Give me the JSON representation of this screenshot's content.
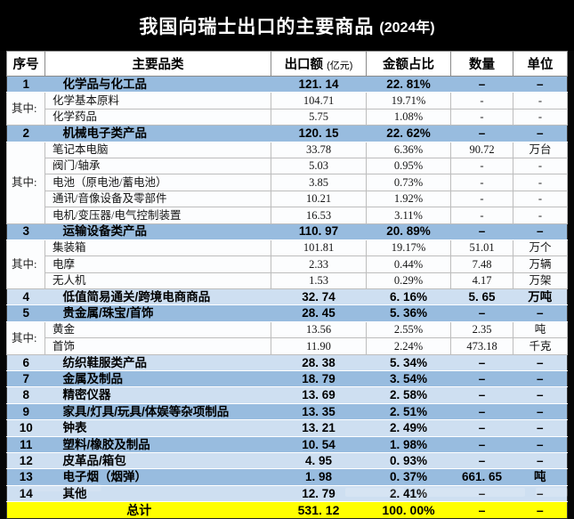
{
  "title": {
    "text": "我国向瑞士出口的主要商品",
    "suffix": "(2024年)"
  },
  "header": {
    "no": "序号",
    "category": "主要品类",
    "value": "出口额",
    "value_note": "(亿元)",
    "share": "金额占比",
    "qty": "数量",
    "unit": "单位"
  },
  "colors": {
    "title_bg": "#000000",
    "title_fg": "#FFFFFF",
    "row_medium": "#98BCDF",
    "row_light": "#CEDFF1",
    "total_bg": "#FFFF00"
  },
  "table": {
    "rows": [
      {
        "kind": "main",
        "shade": "medium",
        "no": "1",
        "category": "化学品与化工品",
        "value": "121. 14",
        "share": "22. 81%",
        "qty": "–",
        "unit": "–"
      },
      {
        "kind": "sub",
        "group": {
          "label": "其中:",
          "span": 2
        },
        "category": "化学基本原料",
        "value": "104.71",
        "share": "19.71%",
        "qty": "-",
        "unit": "-"
      },
      {
        "kind": "sub",
        "category": "化学药品",
        "value": "5.75",
        "share": "1.08%",
        "qty": "-",
        "unit": "-"
      },
      {
        "kind": "main",
        "shade": "medium",
        "no": "2",
        "category": "机械电子类产品",
        "value": "120. 15",
        "share": "22. 62%",
        "qty": "–",
        "unit": "–"
      },
      {
        "kind": "sub",
        "group": {
          "label": "其中:",
          "span": 5
        },
        "category": "笔记本电脑",
        "value": "33.78",
        "share": "6.36%",
        "qty": "90.72",
        "unit": "万台"
      },
      {
        "kind": "sub",
        "category": "阀门/轴承",
        "value": "5.03",
        "share": "0.95%",
        "qty": "-",
        "unit": "-"
      },
      {
        "kind": "sub",
        "category": "电池（原电池/蓄电池）",
        "value": "3.85",
        "share": "0.73%",
        "qty": "-",
        "unit": "-"
      },
      {
        "kind": "sub",
        "category": "通讯/音像设备及零部件",
        "value": "10.21",
        "share": "1.92%",
        "qty": "-",
        "unit": "-"
      },
      {
        "kind": "sub",
        "category": "电机/变压器/电气控制装置",
        "value": "16.53",
        "share": "3.11%",
        "qty": "-",
        "unit": "-"
      },
      {
        "kind": "main",
        "shade": "medium",
        "no": "3",
        "category": "运输设备类产品",
        "value": "110. 97",
        "share": "20. 89%",
        "qty": "–",
        "unit": "–"
      },
      {
        "kind": "sub",
        "group": {
          "label": "其中:",
          "span": 3
        },
        "category": "集装箱",
        "value": "101.81",
        "share": "19.17%",
        "qty": "51.01",
        "unit": "万个"
      },
      {
        "kind": "sub",
        "category": "电摩",
        "value": "2.33",
        "share": "0.44%",
        "qty": "7.48",
        "unit": "万辆"
      },
      {
        "kind": "sub",
        "category": "无人机",
        "value": "1.53",
        "share": "0.29%",
        "qty": "4.17",
        "unit": "万架"
      },
      {
        "kind": "main",
        "shade": "light",
        "no": "4",
        "category": "低值简易通关/跨境电商商品",
        "value": "32. 74",
        "share": "6. 16%",
        "qty": "5. 65",
        "unit": "万吨"
      },
      {
        "kind": "main",
        "shade": "medium",
        "no": "5",
        "category": "贵金属/珠宝/首饰",
        "value": "28. 45",
        "share": "5. 36%",
        "qty": "–",
        "unit": "–"
      },
      {
        "kind": "sub",
        "group": {
          "label": "其中:",
          "span": 2
        },
        "category": "黄金",
        "value": "13.56",
        "share": "2.55%",
        "qty": "2.35",
        "unit": "吨"
      },
      {
        "kind": "sub",
        "category": "首饰",
        "value": "11.90",
        "share": "2.24%",
        "qty": "473.18",
        "unit": "千克"
      },
      {
        "kind": "main",
        "shade": "light",
        "no": "6",
        "category": "纺织鞋服类产品",
        "value": "28. 38",
        "share": "5. 34%",
        "qty": "–",
        "unit": "–"
      },
      {
        "kind": "main",
        "shade": "medium",
        "no": "7",
        "category": "金属及制品",
        "value": "18. 79",
        "share": "3. 54%",
        "qty": "–",
        "unit": "–"
      },
      {
        "kind": "main",
        "shade": "light",
        "no": "8",
        "category": "精密仪器",
        "value": "13. 69",
        "share": "2. 58%",
        "qty": "–",
        "unit": "–"
      },
      {
        "kind": "main",
        "shade": "medium",
        "no": "9",
        "category": "家具/灯具/玩具/体娱等杂项制品",
        "value": "13. 35",
        "share": "2. 51%",
        "qty": "–",
        "unit": "–"
      },
      {
        "kind": "main",
        "shade": "light",
        "no": "10",
        "category": "钟表",
        "value": "13. 21",
        "share": "2. 49%",
        "qty": "–",
        "unit": "–"
      },
      {
        "kind": "main",
        "shade": "medium",
        "no": "11",
        "category": "塑料/橡胶及制品",
        "value": "10. 54",
        "share": "1. 98%",
        "qty": "–",
        "unit": "–"
      },
      {
        "kind": "main",
        "shade": "light",
        "no": "12",
        "category": "皮革品/箱包",
        "value": "4. 95",
        "share": "0. 93%",
        "qty": "–",
        "unit": "–"
      },
      {
        "kind": "main",
        "shade": "medium",
        "no": "13",
        "category": "电子烟（烟弹）",
        "value": "1. 98",
        "share": "0. 37%",
        "qty": "661. 65",
        "unit": "吨"
      },
      {
        "kind": "main",
        "shade": "light",
        "no": "14",
        "category": "其他",
        "value": "12. 79",
        "share": "2. 41%",
        "qty": "–",
        "unit": "–"
      },
      {
        "kind": "total",
        "label": "总计",
        "value": "531. 12",
        "share": "100. 00%",
        "qty": "–",
        "unit": "–"
      }
    ]
  },
  "chart_data": {
    "type": "table",
    "title": "我国向瑞士出口的主要商品 (2024年)",
    "columns": [
      "序号",
      "主要品类",
      "出口额(亿元)",
      "金额占比",
      "数量",
      "单位"
    ],
    "rows": [
      [
        "1",
        "化学品与化工品",
        121.14,
        "22.81%",
        null,
        null
      ],
      [
        "其中",
        "化学基本原料",
        104.71,
        "19.71%",
        null,
        null
      ],
      [
        "其中",
        "化学药品",
        5.75,
        "1.08%",
        null,
        null
      ],
      [
        "2",
        "机械电子类产品",
        120.15,
        "22.62%",
        null,
        null
      ],
      [
        "其中",
        "笔记本电脑",
        33.78,
        "6.36%",
        90.72,
        "万台"
      ],
      [
        "其中",
        "阀门/轴承",
        5.03,
        "0.95%",
        null,
        null
      ],
      [
        "其中",
        "电池（原电池/蓄电池）",
        3.85,
        "0.73%",
        null,
        null
      ],
      [
        "其中",
        "通讯/音像设备及零部件",
        10.21,
        "1.92%",
        null,
        null
      ],
      [
        "其中",
        "电机/变压器/电气控制装置",
        16.53,
        "3.11%",
        null,
        null
      ],
      [
        "3",
        "运输设备类产品",
        110.97,
        "20.89%",
        null,
        null
      ],
      [
        "其中",
        "集装箱",
        101.81,
        "19.17%",
        51.01,
        "万个"
      ],
      [
        "其中",
        "电摩",
        2.33,
        "0.44%",
        7.48,
        "万辆"
      ],
      [
        "其中",
        "无人机",
        1.53,
        "0.29%",
        4.17,
        "万架"
      ],
      [
        "4",
        "低值简易通关/跨境电商商品",
        32.74,
        "6.16%",
        5.65,
        "万吨"
      ],
      [
        "5",
        "贵金属/珠宝/首饰",
        28.45,
        "5.36%",
        null,
        null
      ],
      [
        "其中",
        "黄金",
        13.56,
        "2.55%",
        2.35,
        "吨"
      ],
      [
        "其中",
        "首饰",
        11.9,
        "2.24%",
        473.18,
        "千克"
      ],
      [
        "6",
        "纺织鞋服类产品",
        28.38,
        "5.34%",
        null,
        null
      ],
      [
        "7",
        "金属及制品",
        18.79,
        "3.54%",
        null,
        null
      ],
      [
        "8",
        "精密仪器",
        13.69,
        "2.58%",
        null,
        null
      ],
      [
        "9",
        "家具/灯具/玩具/体娱等杂项制品",
        13.35,
        "2.51%",
        null,
        null
      ],
      [
        "10",
        "钟表",
        13.21,
        "2.49%",
        null,
        null
      ],
      [
        "11",
        "塑料/橡胶及制品",
        10.54,
        "1.98%",
        null,
        null
      ],
      [
        "12",
        "皮革品/箱包",
        4.95,
        "0.93%",
        null,
        null
      ],
      [
        "13",
        "电子烟（烟弹）",
        1.98,
        "0.37%",
        661.65,
        "吨"
      ],
      [
        "14",
        "其他",
        12.79,
        "2.41%",
        null,
        null
      ],
      [
        "总计",
        "",
        531.12,
        "100.00%",
        null,
        null
      ]
    ]
  }
}
